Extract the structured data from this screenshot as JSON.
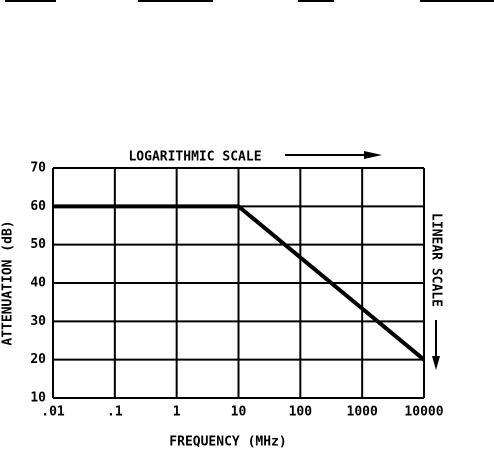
{
  "chart_data": {
    "type": "line",
    "x": [
      0.01,
      10,
      10000
    ],
    "series": [
      {
        "color": "#000000",
        "values": [
          60,
          60,
          20
        ]
      }
    ],
    "xlabel": "FREQUENCY (MHz)",
    "ylabel": "ATTENUATION (dB)",
    "xscale": "log",
    "xlim": [
      0.01,
      10000
    ],
    "xticks": [
      {
        "value": 0.01,
        "label": ".01"
      },
      {
        "value": 0.1,
        "label": ".1"
      },
      1,
      10,
      100,
      1000,
      10000
    ],
    "ylim": [
      10,
      70
    ],
    "yticks": [
      10,
      20,
      30,
      40,
      50,
      60,
      70
    ],
    "grid": true,
    "annotations": [
      "LOGARITHMIC SCALE",
      "LINEAR SCALE"
    ]
  }
}
